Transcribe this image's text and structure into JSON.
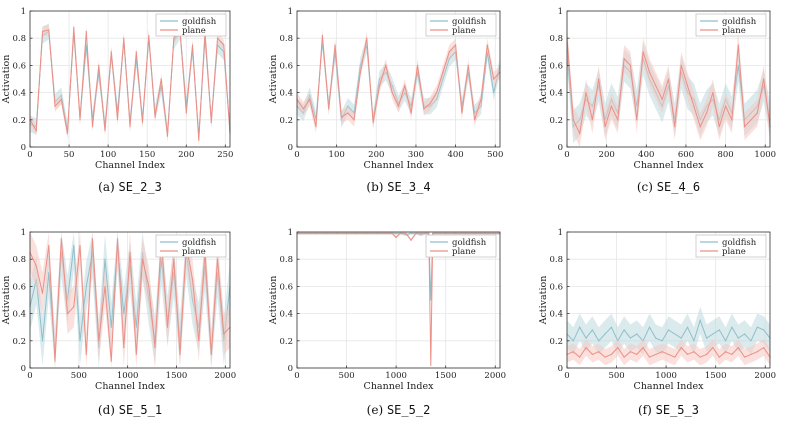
{
  "colors": {
    "goldfish": "#8fbfca",
    "goldfish_band": "#bcd9de",
    "plane": "#ec8f86",
    "plane_band": "#f6c8c1"
  },
  "chart_data": [
    {
      "type": "line",
      "caption_letter": "(a)",
      "caption_code": "SE_2_3",
      "xlabel": "Channel Index",
      "ylabel": "Activation",
      "xlim": [
        0,
        256
      ],
      "ylim": [
        0,
        1
      ],
      "xticks": [
        0,
        50,
        100,
        150,
        200,
        250
      ],
      "yticks": [
        0,
        0.2,
        0.4,
        0.6,
        0.8,
        1
      ],
      "grid": true,
      "legend": "top-right",
      "x": [
        0,
        8,
        16,
        24,
        32,
        40,
        48,
        56,
        64,
        72,
        80,
        88,
        96,
        104,
        112,
        120,
        128,
        136,
        144,
        152,
        160,
        168,
        176,
        184,
        192,
        200,
        208,
        216,
        224,
        232,
        240,
        248,
        256
      ],
      "series": [
        {
          "name": "goldfish",
          "values": [
            0.17,
            0.15,
            0.82,
            0.85,
            0.33,
            0.38,
            0.12,
            0.84,
            0.22,
            0.75,
            0.2,
            0.55,
            0.15,
            0.68,
            0.25,
            0.78,
            0.18,
            0.65,
            0.2,
            0.8,
            0.25,
            0.45,
            0.1,
            0.78,
            0.85,
            0.3,
            0.72,
            0.08,
            0.8,
            0.2,
            0.75,
            0.7,
            0.12
          ],
          "band": 0.06
        },
        {
          "name": "plane",
          "values": [
            0.2,
            0.12,
            0.85,
            0.86,
            0.3,
            0.35,
            0.1,
            0.88,
            0.2,
            0.85,
            0.15,
            0.6,
            0.12,
            0.7,
            0.2,
            0.8,
            0.15,
            0.7,
            0.18,
            0.82,
            0.22,
            0.5,
            0.08,
            0.8,
            0.86,
            0.25,
            0.75,
            0.05,
            0.85,
            0.18,
            0.8,
            0.75,
            0.1
          ],
          "band": 0.04
        }
      ]
    },
    {
      "type": "line",
      "caption_letter": "(b)",
      "caption_code": "SE_3_4",
      "xlabel": "Channel Index",
      "ylabel": "Activation",
      "xlim": [
        0,
        512
      ],
      "ylim": [
        0,
        1
      ],
      "xticks": [
        0,
        100,
        200,
        300,
        400,
        500
      ],
      "yticks": [
        0,
        0.2,
        0.4,
        0.6,
        0.8,
        1
      ],
      "grid": true,
      "legend": "top-right",
      "x": [
        0,
        16,
        32,
        48,
        64,
        80,
        96,
        112,
        128,
        144,
        160,
        176,
        192,
        208,
        224,
        240,
        256,
        272,
        288,
        304,
        320,
        336,
        352,
        368,
        384,
        400,
        416,
        432,
        448,
        464,
        480,
        496,
        512
      ],
      "series": [
        {
          "name": "goldfish",
          "values": [
            0.3,
            0.25,
            0.38,
            0.2,
            0.78,
            0.3,
            0.7,
            0.2,
            0.3,
            0.25,
            0.6,
            0.75,
            0.2,
            0.5,
            0.55,
            0.45,
            0.32,
            0.4,
            0.3,
            0.55,
            0.3,
            0.3,
            0.35,
            0.5,
            0.65,
            0.7,
            0.3,
            0.55,
            0.25,
            0.3,
            0.7,
            0.4,
            0.6
          ],
          "band": 0.06
        },
        {
          "name": "plane",
          "values": [
            0.35,
            0.28,
            0.35,
            0.15,
            0.82,
            0.28,
            0.75,
            0.22,
            0.25,
            0.2,
            0.55,
            0.8,
            0.18,
            0.45,
            0.6,
            0.4,
            0.3,
            0.45,
            0.25,
            0.6,
            0.28,
            0.32,
            0.4,
            0.55,
            0.7,
            0.75,
            0.25,
            0.6,
            0.2,
            0.35,
            0.75,
            0.5,
            0.55
          ],
          "band": 0.05
        }
      ]
    },
    {
      "type": "line",
      "caption_letter": "(c)",
      "caption_code": "SE_4_6",
      "xlabel": "Channel Index",
      "ylabel": "Activation",
      "xlim": [
        0,
        1024
      ],
      "ylim": [
        0,
        1
      ],
      "xticks": [
        0,
        200,
        400,
        600,
        800,
        1000
      ],
      "yticks": [
        0,
        0.2,
        0.4,
        0.6,
        0.8,
        1
      ],
      "grid": true,
      "legend": "top-right",
      "x": [
        0,
        32,
        64,
        96,
        128,
        160,
        192,
        224,
        256,
        288,
        320,
        352,
        384,
        416,
        448,
        480,
        512,
        544,
        576,
        608,
        640,
        672,
        704,
        736,
        768,
        800,
        832,
        864,
        896,
        928,
        960,
        992,
        1024
      ],
      "series": [
        {
          "name": "goldfish",
          "values": [
            0.7,
            0.15,
            0.2,
            0.35,
            0.3,
            0.45,
            0.2,
            0.35,
            0.25,
            0.6,
            0.55,
            0.3,
            0.65,
            0.5,
            0.4,
            0.3,
            0.45,
            0.2,
            0.55,
            0.4,
            0.35,
            0.2,
            0.3,
            0.35,
            0.2,
            0.35,
            0.25,
            0.6,
            0.2,
            0.25,
            0.3,
            0.45,
            0.2
          ],
          "band": 0.12
        },
        {
          "name": "plane",
          "values": [
            0.8,
            0.2,
            0.1,
            0.4,
            0.2,
            0.5,
            0.15,
            0.3,
            0.2,
            0.65,
            0.6,
            0.2,
            0.7,
            0.55,
            0.45,
            0.35,
            0.5,
            0.15,
            0.6,
            0.45,
            0.3,
            0.15,
            0.25,
            0.4,
            0.15,
            0.3,
            0.2,
            0.75,
            0.15,
            0.2,
            0.25,
            0.5,
            0.15
          ],
          "band": 0.1
        }
      ]
    },
    {
      "type": "line",
      "caption_letter": "(d)",
      "caption_code": "SE_5_1",
      "xlabel": "Channel Index",
      "ylabel": "Activation",
      "xlim": [
        0,
        2048
      ],
      "ylim": [
        0,
        1
      ],
      "xticks": [
        0,
        500,
        1000,
        1500,
        2000
      ],
      "yticks": [
        0,
        0.2,
        0.4,
        0.6,
        0.8,
        1
      ],
      "grid": true,
      "legend": "top-right",
      "x": [
        0,
        64,
        128,
        192,
        256,
        320,
        384,
        448,
        512,
        576,
        640,
        704,
        768,
        832,
        896,
        960,
        1024,
        1088,
        1152,
        1216,
        1280,
        1344,
        1408,
        1472,
        1536,
        1600,
        1664,
        1728,
        1792,
        1856,
        1920,
        1984,
        2048
      ],
      "series": [
        {
          "name": "goldfish",
          "values": [
            0.45,
            0.65,
            0.2,
            0.7,
            0.1,
            0.85,
            0.5,
            0.9,
            0.2,
            0.6,
            0.85,
            0.15,
            0.8,
            0.3,
            0.9,
            0.4,
            0.75,
            0.3,
            0.85,
            0.5,
            0.2,
            0.8,
            0.35,
            0.7,
            0.2,
            0.85,
            0.5,
            0.3,
            0.75,
            0.1,
            0.7,
            0.2,
            0.6
          ],
          "band": 0.18
        },
        {
          "name": "plane",
          "values": [
            0.85,
            0.75,
            0.55,
            0.9,
            0.05,
            0.95,
            0.4,
            0.45,
            0.9,
            0.1,
            0.95,
            0.2,
            0.6,
            0.05,
            0.95,
            0.15,
            0.85,
            0.1,
            0.8,
            0.6,
            0.15,
            0.95,
            0.3,
            0.8,
            0.1,
            0.9,
            0.65,
            0.2,
            0.85,
            0.1,
            0.8,
            0.25,
            0.3
          ],
          "band": 0.15
        }
      ]
    },
    {
      "type": "line",
      "caption_letter": "(e)",
      "caption_code": "SE_5_2",
      "xlabel": "Channel Index",
      "ylabel": "Activation",
      "xlim": [
        0,
        2048
      ],
      "ylim": [
        0,
        1
      ],
      "xticks": [
        0,
        500,
        1000,
        1500,
        2000
      ],
      "yticks": [
        0,
        0.2,
        0.4,
        0.6,
        0.8,
        1
      ],
      "grid": true,
      "legend": "top-right",
      "x": [
        0,
        100,
        200,
        300,
        400,
        500,
        600,
        700,
        800,
        900,
        960,
        1000,
        1040,
        1100,
        1150,
        1200,
        1250,
        1300,
        1330,
        1350,
        1370,
        1400,
        1500,
        1600,
        1700,
        1800,
        1900,
        2000,
        2048
      ],
      "series": [
        {
          "name": "goldfish",
          "values": [
            0.99,
            0.99,
            0.99,
            0.99,
            0.99,
            0.99,
            0.99,
            0.99,
            0.99,
            0.99,
            0.99,
            0.99,
            0.99,
            0.98,
            0.99,
            0.99,
            0.98,
            0.99,
            0.99,
            0.5,
            0.99,
            0.99,
            0.99,
            0.99,
            0.99,
            0.99,
            0.99,
            0.99,
            0.99
          ],
          "band": 0.01
        },
        {
          "name": "plane",
          "values": [
            0.99,
            0.99,
            0.99,
            0.99,
            0.99,
            0.99,
            0.99,
            0.99,
            0.99,
            0.99,
            0.99,
            0.96,
            0.99,
            0.99,
            0.94,
            0.99,
            0.99,
            0.99,
            0.99,
            0.02,
            0.99,
            0.99,
            0.99,
            0.99,
            0.99,
            0.99,
            0.99,
            0.99,
            0.99
          ],
          "band": 0.01
        }
      ]
    },
    {
      "type": "line",
      "caption_letter": "(f)",
      "caption_code": "SE_5_3",
      "xlabel": "Channel Index",
      "ylabel": "Activation",
      "xlim": [
        0,
        2048
      ],
      "ylim": [
        0,
        1
      ],
      "xticks": [
        0,
        500,
        1000,
        1500,
        2000
      ],
      "yticks": [
        0,
        0.2,
        0.4,
        0.6,
        0.8,
        1
      ],
      "grid": true,
      "legend": "top-right",
      "x": [
        0,
        64,
        128,
        192,
        256,
        320,
        384,
        448,
        512,
        576,
        640,
        704,
        768,
        832,
        896,
        960,
        1024,
        1088,
        1152,
        1216,
        1280,
        1344,
        1408,
        1472,
        1536,
        1600,
        1664,
        1728,
        1792,
        1856,
        1920,
        1984,
        2048
      ],
      "series": [
        {
          "name": "goldfish",
          "values": [
            0.25,
            0.2,
            0.3,
            0.22,
            0.28,
            0.2,
            0.25,
            0.3,
            0.2,
            0.28,
            0.22,
            0.25,
            0.2,
            0.3,
            0.22,
            0.2,
            0.28,
            0.25,
            0.22,
            0.3,
            0.2,
            0.35,
            0.22,
            0.25,
            0.28,
            0.2,
            0.3,
            0.22,
            0.25,
            0.2,
            0.3,
            0.28,
            0.22
          ],
          "band": 0.1
        },
        {
          "name": "plane",
          "values": [
            0.1,
            0.12,
            0.08,
            0.15,
            0.1,
            0.12,
            0.08,
            0.1,
            0.15,
            0.08,
            0.12,
            0.1,
            0.15,
            0.08,
            0.1,
            0.12,
            0.1,
            0.08,
            0.15,
            0.1,
            0.12,
            0.08,
            0.1,
            0.15,
            0.08,
            0.12,
            0.1,
            0.15,
            0.08,
            0.1,
            0.12,
            0.15,
            0.08
          ],
          "band": 0.06
        }
      ]
    }
  ]
}
